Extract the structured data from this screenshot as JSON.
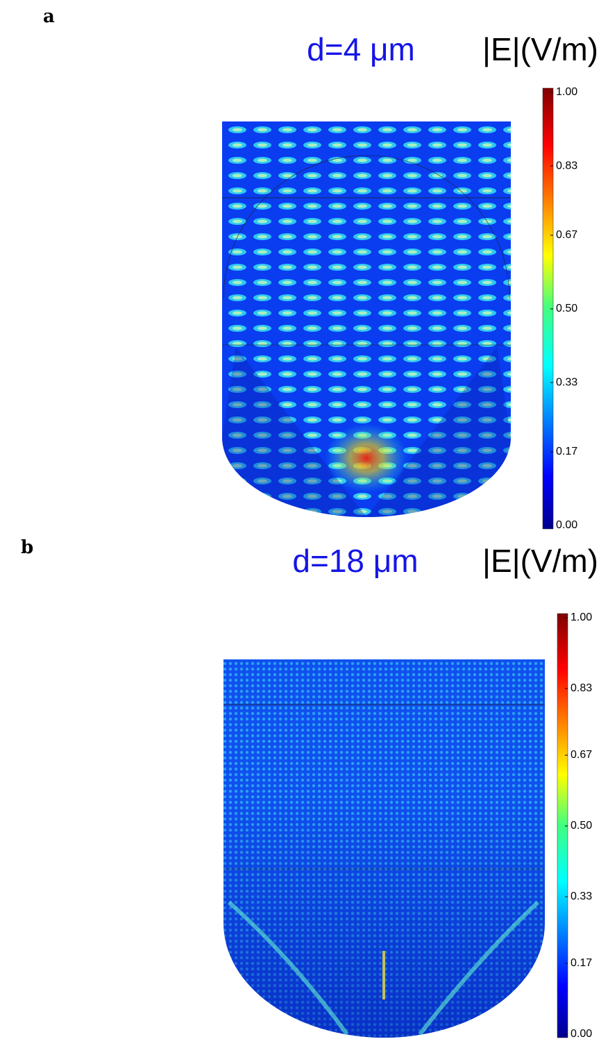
{
  "panels": [
    {
      "label": "a",
      "title": "d=4 μm",
      "colorbar": {
        "label": "|E|(V/m)",
        "lim": [
          0,
          1
        ],
        "ticks": [
          {
            "value": 0,
            "label": "0.00"
          },
          {
            "value": 0.17,
            "label": "0.17"
          },
          {
            "value": 0.33,
            "label": "0.33"
          },
          {
            "value": 0.5,
            "label": "0.50"
          },
          {
            "value": 0.67,
            "label": "0.67"
          },
          {
            "value": 0.83,
            "label": "0.83"
          },
          {
            "value": 1,
            "label": "1.00"
          }
        ]
      }
    },
    {
      "label": "b",
      "title": "d=18 μm",
      "colorbar": {
        "label": "|E|(V/m)",
        "lim": [
          0,
          1
        ],
        "ticks": [
          {
            "value": 0,
            "label": "0.00"
          },
          {
            "value": 0.17,
            "label": "0.17"
          },
          {
            "value": 0.33,
            "label": "0.33"
          },
          {
            "value": 0.5,
            "label": "0.50"
          },
          {
            "value": 0.67,
            "label": "0.67"
          },
          {
            "value": 0.83,
            "label": "0.83"
          },
          {
            "value": 1,
            "label": "1.00"
          }
        ]
      }
    }
  ]
}
